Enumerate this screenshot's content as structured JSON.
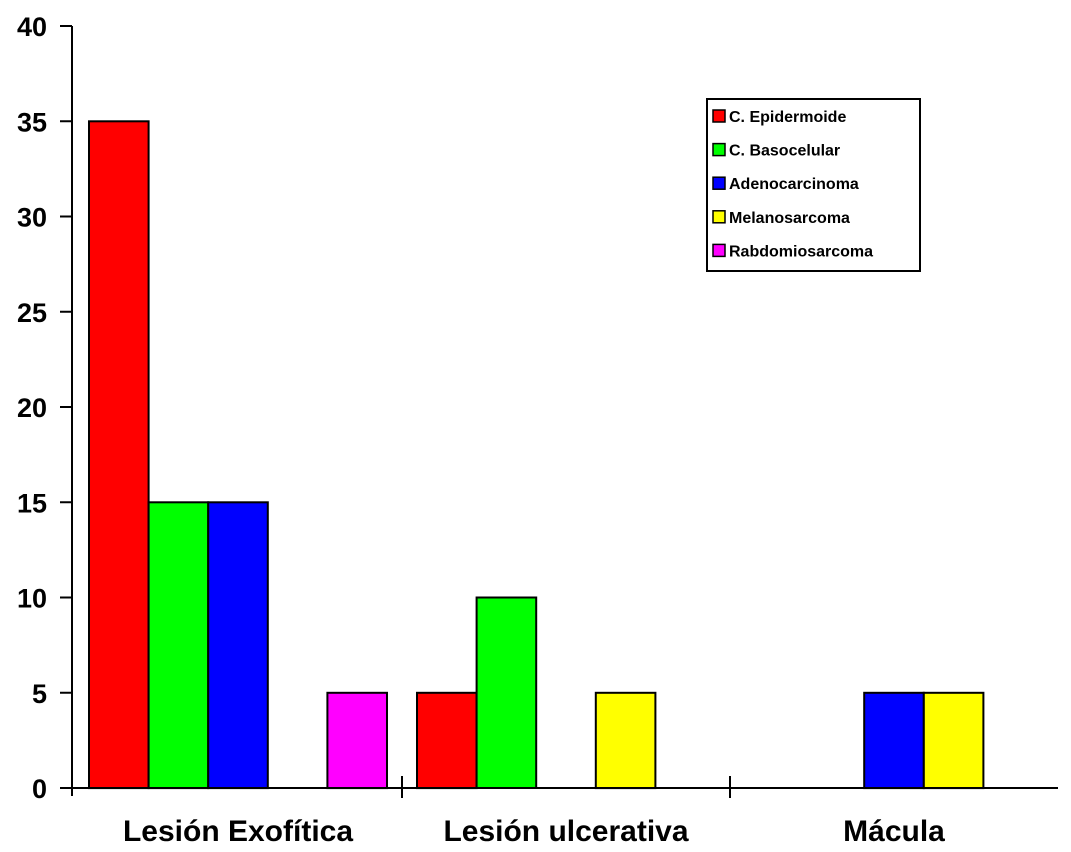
{
  "chart_data": {
    "type": "bar",
    "title": "",
    "xlabel": "",
    "ylabel": "",
    "ylim": [
      0,
      40
    ],
    "yticks": [
      0,
      5,
      10,
      15,
      20,
      25,
      30,
      35,
      40
    ],
    "grid": false,
    "legend_position": "top-right",
    "categories": [
      "Lesión Exofítica",
      "Lesión ulcerativa",
      "Mácula"
    ],
    "series": [
      {
        "name": "C. Epidermoide",
        "color": "#ff0000",
        "values": [
          35,
          5,
          0
        ]
      },
      {
        "name": "C. Basocelular",
        "color": "#00ff00",
        "values": [
          15,
          10,
          0
        ]
      },
      {
        "name": "Adenocarcinoma",
        "color": "#0000ff",
        "values": [
          15,
          0,
          5
        ]
      },
      {
        "name": "Melanosarcoma",
        "color": "#ffff00",
        "values": [
          0,
          5,
          5
        ]
      },
      {
        "name": "Rabdomiosarcoma",
        "color": "#ff00ff",
        "values": [
          5,
          0,
          0
        ]
      }
    ]
  }
}
